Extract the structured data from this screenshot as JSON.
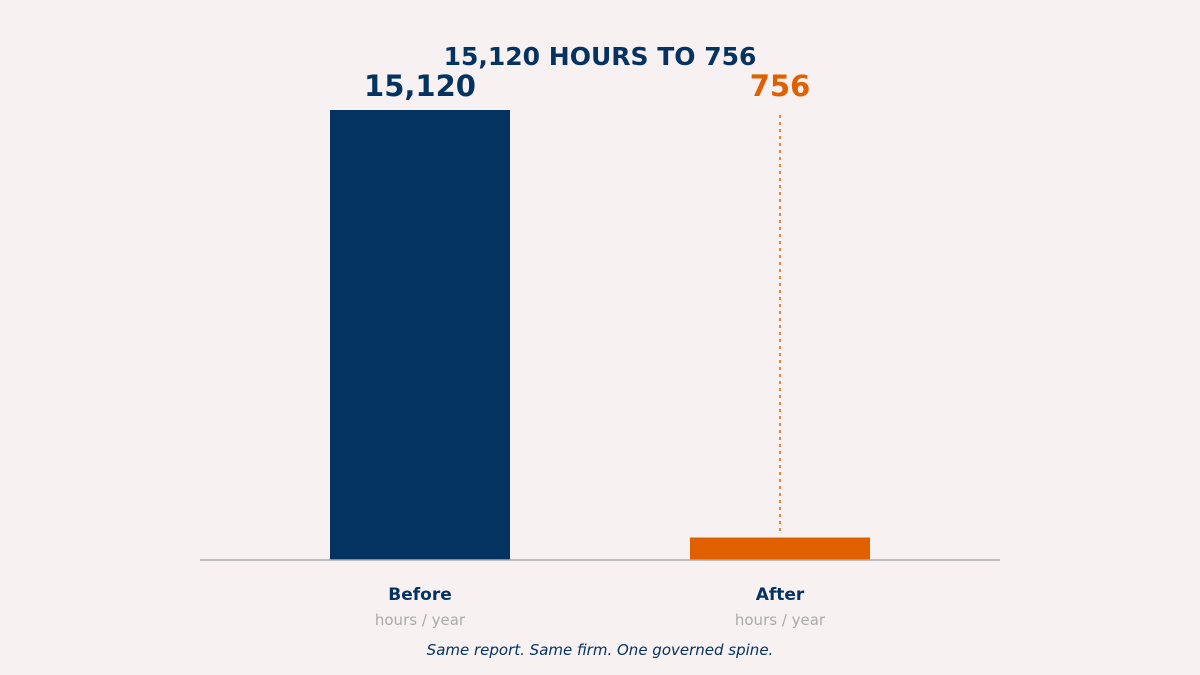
{
  "colors": {
    "background": "#f7f1f1",
    "before": "#053361",
    "after": "#e06000",
    "axis": "#aaaaaa",
    "unit_text": "#aaaaaa",
    "caption": "#053361"
  },
  "chart_data": {
    "type": "bar",
    "title": "15,120 HOURS TO 756",
    "categories": [
      "Before",
      "After"
    ],
    "values": [
      15120,
      756
    ],
    "value_labels": [
      "15,120",
      "756"
    ],
    "category_sublabels": [
      "hours / year",
      "hours / year"
    ],
    "ylim": [
      0,
      15120
    ],
    "grid": false,
    "legend": "none",
    "annotations": [
      "dotted reference line rising from the After bar to the top of the Before bar"
    ],
    "caption": "Same report. Same firm. One governed spine."
  }
}
